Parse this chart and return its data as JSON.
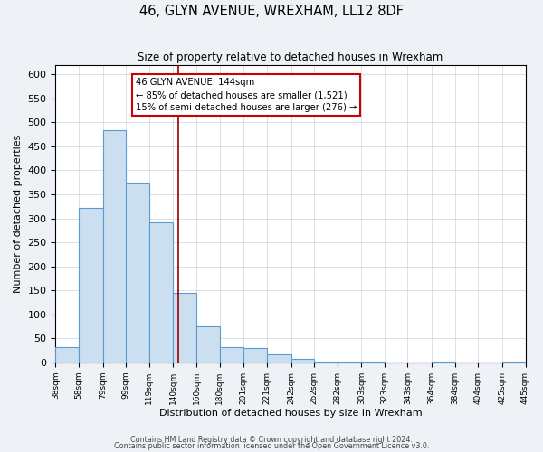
{
  "title": "46, GLYN AVENUE, WREXHAM, LL12 8DF",
  "subtitle": "Size of property relative to detached houses in Wrexham",
  "xlabel": "Distribution of detached houses by size in Wrexham",
  "ylabel": "Number of detached properties",
  "bar_edges": [
    38,
    58,
    79,
    99,
    119,
    140,
    160,
    180,
    201,
    221,
    242,
    262,
    282,
    303,
    323,
    343,
    364,
    384,
    404,
    425,
    445
  ],
  "bar_heights": [
    32,
    322,
    483,
    375,
    291,
    144,
    75,
    31,
    29,
    17,
    8,
    2,
    2,
    2,
    0,
    0,
    2,
    0,
    0,
    2
  ],
  "bar_color": "#ccdff0",
  "bar_edge_color": "#5b9bd5",
  "vline_x": 144,
  "vline_color": "#990000",
  "annotation_title": "46 GLYN AVENUE: 144sqm",
  "annotation_line1": "← 85% of detached houses are smaller (1,521)",
  "annotation_line2": "15% of semi-detached houses are larger (276) →",
  "annotation_box_facecolor": "#ffffff",
  "annotation_box_edgecolor": "#cc0000",
  "tick_labels": [
    "38sqm",
    "58sqm",
    "79sqm",
    "99sqm",
    "119sqm",
    "140sqm",
    "160sqm",
    "180sqm",
    "201sqm",
    "221sqm",
    "242sqm",
    "262sqm",
    "282sqm",
    "303sqm",
    "323sqm",
    "343sqm",
    "364sqm",
    "384sqm",
    "404sqm",
    "425sqm",
    "445sqm"
  ],
  "ylim": [
    0,
    620
  ],
  "xlim": [
    38,
    445
  ],
  "yticks": [
    0,
    50,
    100,
    150,
    200,
    250,
    300,
    350,
    400,
    450,
    500,
    550,
    600
  ],
  "footer1": "Contains HM Land Registry data © Crown copyright and database right 2024.",
  "footer2": "Contains public sector information licensed under the Open Government Licence v3.0.",
  "background_color": "#eef2f7",
  "plot_bg_color": "#ffffff",
  "grid_color": "#c8d4e0"
}
